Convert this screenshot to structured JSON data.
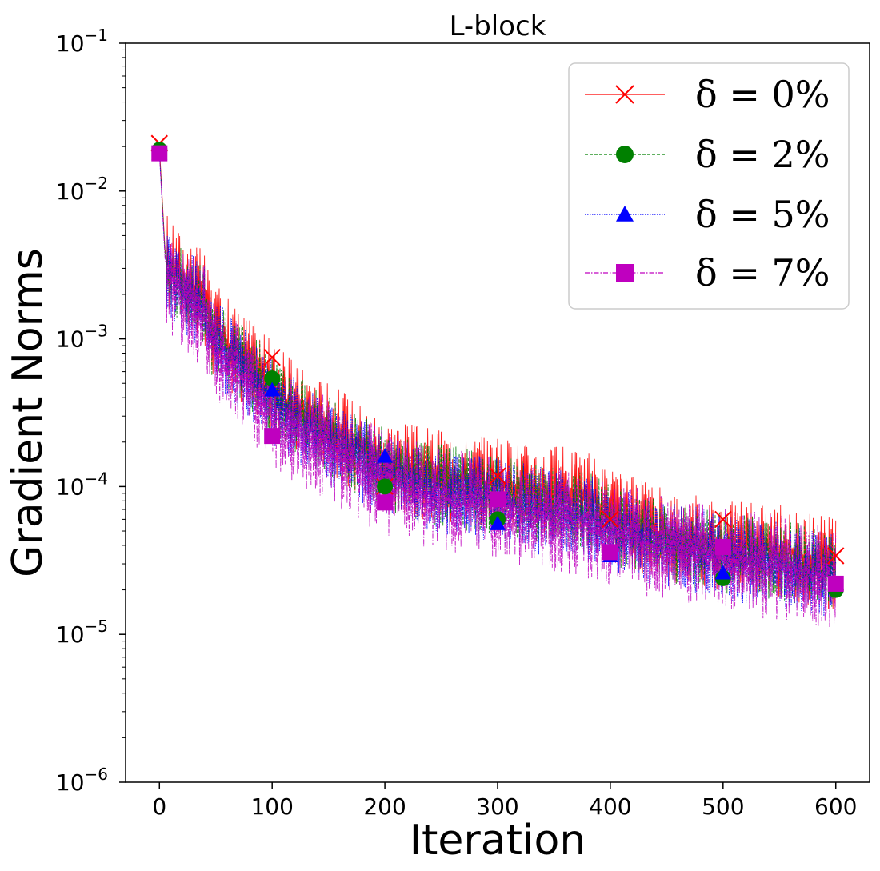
{
  "chart_data": {
    "type": "line",
    "title": "L-block",
    "xlabel": "Iteration",
    "ylabel": "Gradient Norms",
    "xlim": [
      -30,
      630
    ],
    "ylim_log10": [
      -6,
      -1
    ],
    "y_scale": "log",
    "x_ticks": [
      0,
      100,
      200,
      300,
      400,
      500,
      600
    ],
    "x_tick_labels": [
      "0",
      "100",
      "200",
      "300",
      "400",
      "500",
      "600"
    ],
    "y_ticks_exp": [
      -6,
      -5,
      -4,
      -3,
      -2,
      -1
    ],
    "y_tick_base": "10",
    "y_tick_exponents": [
      "−6",
      "−5",
      "−4",
      "−3",
      "−2",
      "−1"
    ],
    "legend_position": "top-right",
    "series": [
      {
        "name": "δ = 0%",
        "legend_label": "δ = 0%",
        "color": "#ff0000",
        "marker": "x",
        "dash": "",
        "amp": 0.32,
        "offset": 0.06,
        "marker_x": [
          0,
          100,
          200,
          300,
          400,
          500,
          600
        ],
        "marker_y": [
          0.021,
          0.00075,
          0.0001,
          0.000118,
          6e-05,
          6e-05,
          3.4e-05
        ],
        "x": [
          0,
          5,
          8,
          20,
          40,
          45,
          60,
          80,
          100,
          120,
          150,
          180,
          200,
          230,
          260,
          300,
          330,
          360,
          385,
          400,
          450,
          500,
          550,
          600
        ],
        "y": [
          0.02,
          0.004,
          0.003,
          0.0025,
          0.0018,
          0.0012,
          0.0009,
          0.00065,
          0.00045,
          0.00032,
          0.00024,
          0.00017,
          0.00014,
          0.00012,
          0.00011,
          0.0001,
          9.2e-05,
          8.5e-05,
          7.8e-05,
          6e-05,
          4.5e-05,
          3.8e-05,
          3.5e-05,
          2.8e-05
        ]
      },
      {
        "name": "δ = 2%",
        "legend_label": "δ = 2%",
        "color": "#008000",
        "marker": "o",
        "dash": "4,2",
        "amp": 0.28,
        "offset": 0.0,
        "marker_x": [
          0,
          100,
          200,
          300,
          400,
          500,
          600
        ],
        "marker_y": [
          0.019,
          0.00054,
          0.0001,
          6e-05,
          3.5e-05,
          2.4e-05,
          2e-05
        ],
        "x": [
          0,
          5,
          8,
          20,
          40,
          45,
          60,
          80,
          100,
          120,
          150,
          180,
          200,
          230,
          260,
          300,
          330,
          360,
          385,
          400,
          450,
          500,
          550,
          600
        ],
        "y": [
          0.019,
          0.0038,
          0.0028,
          0.0023,
          0.0017,
          0.0011,
          0.00085,
          0.0006,
          0.00042,
          0.0003,
          0.00022,
          0.00016,
          0.00013,
          0.00011,
          0.0001,
          8.5e-05,
          7.8e-05,
          7e-05,
          6.4e-05,
          5.5e-05,
          4.3e-05,
          3.6e-05,
          3.2e-05,
          2.6e-05
        ]
      },
      {
        "name": "δ = 5%",
        "legend_label": "δ = 5%",
        "color": "#0000ff",
        "marker": "^",
        "dash": "1.5,1.5",
        "amp": 0.3,
        "offset": -0.03,
        "marker_x": [
          0,
          100,
          200,
          300,
          400,
          500,
          600
        ],
        "marker_y": [
          0.018,
          0.00045,
          0.00016,
          5.6e-05,
          3.4e-05,
          2.6e-05,
          2.2e-05
        ],
        "x": [
          0,
          5,
          8,
          20,
          40,
          45,
          60,
          80,
          100,
          120,
          150,
          180,
          200,
          230,
          260,
          300,
          330,
          360,
          385,
          400,
          450,
          500,
          550,
          600
        ],
        "y": [
          0.018,
          0.0036,
          0.0027,
          0.0022,
          0.0016,
          0.00105,
          0.0008,
          0.00055,
          0.0004,
          0.00028,
          0.0002,
          0.00015,
          0.00012,
          0.0001,
          9.2e-05,
          8e-05,
          7.2e-05,
          6.5e-05,
          6e-05,
          5.2e-05,
          4.2e-05,
          3.4e-05,
          3e-05,
          2.5e-05
        ]
      },
      {
        "name": "δ = 7%",
        "legend_label": "δ = 7%",
        "color": "#bf00bf",
        "marker": "s",
        "dash": "6,2,1.5,2",
        "amp": 0.36,
        "offset": -0.08,
        "marker_x": [
          0,
          100,
          200,
          300,
          400,
          500,
          600
        ],
        "marker_y": [
          0.018,
          0.00022,
          7.8e-05,
          8.2e-05,
          3.6e-05,
          3.9e-05,
          2.2e-05
        ],
        "x": [
          0,
          5,
          8,
          20,
          40,
          45,
          60,
          80,
          100,
          120,
          150,
          180,
          200,
          230,
          260,
          300,
          330,
          360,
          385,
          400,
          450,
          500,
          550,
          600
        ],
        "y": [
          0.018,
          0.0035,
          0.0026,
          0.0021,
          0.0015,
          0.001,
          0.00075,
          0.0005,
          0.00033,
          0.00025,
          0.00019,
          0.00014,
          0.00011,
          9.5e-05,
          8.5e-05,
          7.5e-05,
          6.8e-05,
          6.2e-05,
          5.6e-05,
          5e-05,
          4.1e-05,
          3.4e-05,
          3e-05,
          2.5e-05
        ]
      }
    ]
  }
}
